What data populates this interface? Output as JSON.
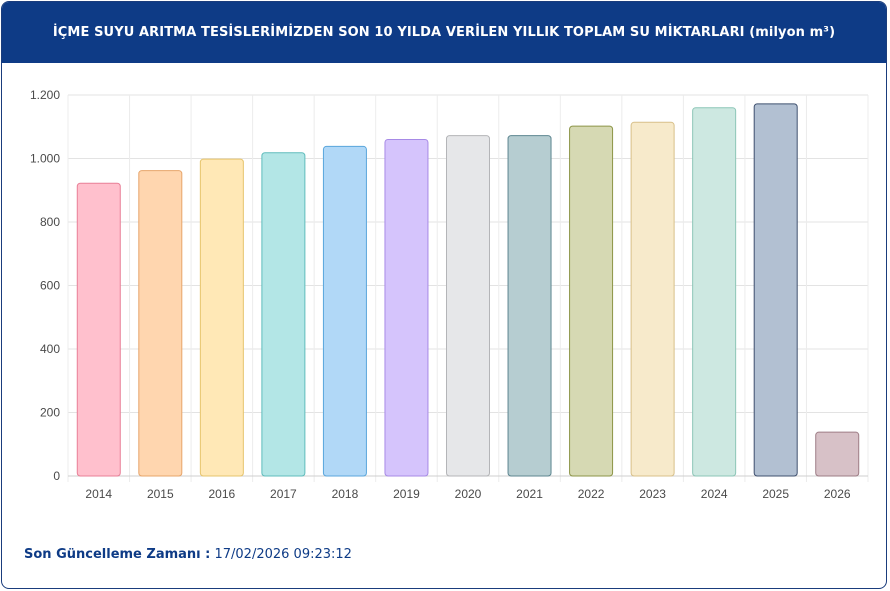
{
  "header": {
    "title": "İÇME SUYU ARITMA TESİSLERİMİZDEN SON 10 YILDA VERİLEN YILLIK TOPLAM SU MİKTARLARI (milyon m³)"
  },
  "footer": {
    "label": "Son Güncelleme Zamanı :",
    "value": " 17/02/2026 09:23:12"
  },
  "chart_data": {
    "type": "bar",
    "title": "İÇME SUYU ARITMA TESİSLERİMİZDEN SON 10 YILDA VERİLEN YILLIK TOPLAM SU MİKTARLARI (milyon m³)",
    "xlabel": "",
    "ylabel": "",
    "categories": [
      "2014",
      "2015",
      "2016",
      "2017",
      "2018",
      "2019",
      "2020",
      "2021",
      "2022",
      "2023",
      "2024",
      "2025",
      "2026"
    ],
    "values": [
      922,
      962,
      998,
      1018,
      1038,
      1060,
      1072,
      1072,
      1102,
      1114,
      1160,
      1172,
      138
    ],
    "ylim": [
      0,
      1200
    ],
    "yticks": [
      0,
      200,
      400,
      600,
      800,
      1000,
      1200
    ],
    "ytick_labels": [
      "0",
      "200",
      "400",
      "600",
      "800",
      "1.000",
      "1.200"
    ],
    "grid": true,
    "colors": [
      "#ffc0cd",
      "#ffd6af",
      "#ffe8b6",
      "#b3e6e6",
      "#b1d8f7",
      "#d5c4fc",
      "#e6e7e9",
      "#b6cdd1",
      "#d6d9b3",
      "#f7eacb",
      "#cde8e1",
      "#b2c0d2",
      "#d7c1c7"
    ],
    "border_colors": [
      "#e87f97",
      "#e7a56a",
      "#e6c46c",
      "#5fbcbc",
      "#5aa6dc",
      "#a78ae6",
      "#b4b5b8",
      "#5d8690",
      "#8c9547",
      "#d8c089",
      "#8cc6b7",
      "#3f506f",
      "#9e7d86"
    ]
  }
}
